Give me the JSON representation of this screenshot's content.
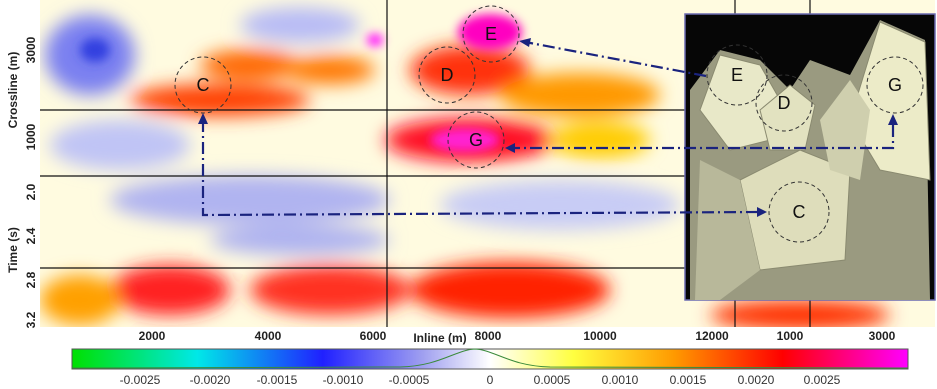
{
  "figure": {
    "inline_axis": {
      "label": "Inline (m)",
      "ticks": [
        "2000",
        "4000",
        "6000",
        "8000",
        "10000",
        "12000"
      ]
    },
    "side_axis": {
      "ticks": [
        "1000",
        "3000"
      ]
    },
    "crossline_axis": {
      "label": "Crossline (m)",
      "ticks": [
        "3000",
        "1000"
      ]
    },
    "time_axis": {
      "label": "Time (s)",
      "ticks": [
        "2.0",
        "2.4",
        "2.8",
        "3.2"
      ]
    },
    "colorbar": {
      "ticks": [
        "-0.0025",
        "-0.0020",
        "-0.0015",
        "-0.0010",
        "-0.0005",
        "0",
        "0.0005",
        "0.0010",
        "0.0015",
        "0.0020",
        "0.0025"
      ]
    },
    "markers": {
      "main": [
        "C",
        "D",
        "E",
        "G"
      ],
      "inset": [
        "E",
        "D",
        "G",
        "C"
      ]
    }
  }
}
